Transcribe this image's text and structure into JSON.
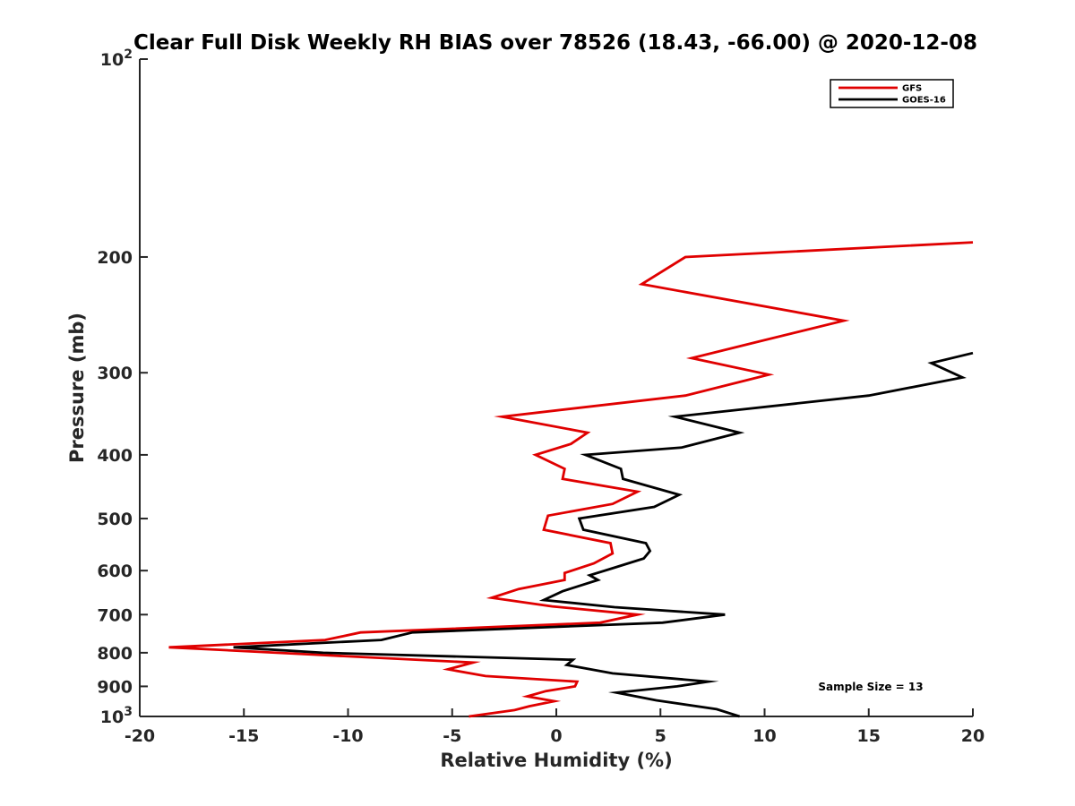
{
  "chart_data": {
    "type": "line",
    "title": "Clear Full Disk Weekly RH BIAS over 78526 (18.43, -66.00) @ 2020-12-08",
    "xlabel": "Relative Humidity (%)",
    "ylabel": "Pressure (mb)",
    "xlim": [
      -20,
      20
    ],
    "ylim": [
      100,
      1000
    ],
    "y_scale": "log",
    "y_reversed": true,
    "grid": false,
    "legend_position": "top-right",
    "x_ticks": [
      -20,
      -15,
      -10,
      -5,
      0,
      5,
      10,
      15,
      20
    ],
    "y_ticks": [
      {
        "value": 100,
        "label": "10",
        "sup": "2"
      },
      {
        "value": 200,
        "label": "200",
        "sup": ""
      },
      {
        "value": 300,
        "label": "300",
        "sup": ""
      },
      {
        "value": 400,
        "label": "400",
        "sup": ""
      },
      {
        "value": 500,
        "label": "500",
        "sup": ""
      },
      {
        "value": 600,
        "label": "600",
        "sup": ""
      },
      {
        "value": 700,
        "label": "700",
        "sup": ""
      },
      {
        "value": 800,
        "label": "800",
        "sup": ""
      },
      {
        "value": 900,
        "label": "900",
        "sup": ""
      },
      {
        "value": 1000,
        "label": "10",
        "sup": "3"
      }
    ],
    "series": [
      {
        "name": "GFS",
        "color": "#e00000",
        "points": [
          [
            20.0,
            190
          ],
          [
            6.2,
            200
          ],
          [
            4.1,
            220
          ],
          [
            13.8,
            250
          ],
          [
            9.5,
            270
          ],
          [
            6.5,
            285
          ],
          [
            10.2,
            302
          ],
          [
            6.2,
            325
          ],
          [
            -2.6,
            350
          ],
          [
            1.5,
            370
          ],
          [
            0.7,
            385
          ],
          [
            -1.0,
            400
          ],
          [
            0.4,
            420
          ],
          [
            0.3,
            435
          ],
          [
            3.9,
            455
          ],
          [
            2.7,
            475
          ],
          [
            -0.4,
            495
          ],
          [
            -0.6,
            520
          ],
          [
            2.6,
            545
          ],
          [
            2.7,
            565
          ],
          [
            1.8,
            585
          ],
          [
            0.4,
            605
          ],
          [
            0.4,
            620
          ],
          [
            -1.8,
            640
          ],
          [
            -3.1,
            660
          ],
          [
            -0.2,
            680
          ],
          [
            3.9,
            700
          ],
          [
            2.1,
            720
          ],
          [
            -9.4,
            745
          ],
          [
            -11.1,
            765
          ],
          [
            -18.6,
            785
          ],
          [
            -11.7,
            805
          ],
          [
            -4.0,
            828
          ],
          [
            -5.2,
            848
          ],
          [
            -3.4,
            868
          ],
          [
            1.0,
            885
          ],
          [
            0.9,
            900
          ],
          [
            -0.5,
            915
          ],
          [
            -1.4,
            932
          ],
          [
            -0.1,
            948
          ],
          [
            -1.3,
            965
          ],
          [
            -2.0,
            978
          ],
          [
            -4.2,
            1000
          ]
        ]
      },
      {
        "name": "GOES-16",
        "color": "#000000",
        "points": [
          [
            20.0,
            280
          ],
          [
            18.0,
            290
          ],
          [
            19.5,
            305
          ],
          [
            15.0,
            325
          ],
          [
            5.7,
            350
          ],
          [
            8.8,
            370
          ],
          [
            6.0,
            390
          ],
          [
            1.4,
            400
          ],
          [
            3.1,
            420
          ],
          [
            3.2,
            435
          ],
          [
            5.9,
            460
          ],
          [
            4.7,
            480
          ],
          [
            1.1,
            500
          ],
          [
            1.3,
            520
          ],
          [
            4.3,
            545
          ],
          [
            4.5,
            560
          ],
          [
            4.2,
            575
          ],
          [
            2.7,
            595
          ],
          [
            1.6,
            610
          ],
          [
            2.0,
            620
          ],
          [
            0.3,
            645
          ],
          [
            -0.6,
            665
          ],
          [
            2.8,
            682
          ],
          [
            8.1,
            700
          ],
          [
            5.1,
            720
          ],
          [
            -6.9,
            745
          ],
          [
            -8.4,
            765
          ],
          [
            -15.5,
            785
          ],
          [
            -11.2,
            800
          ],
          [
            0.8,
            820
          ],
          [
            0.5,
            835
          ],
          [
            2.7,
            860
          ],
          [
            7.3,
            885
          ],
          [
            5.8,
            900
          ],
          [
            2.9,
            920
          ],
          [
            4.8,
            945
          ],
          [
            7.7,
            975
          ],
          [
            8.8,
            1000
          ]
        ]
      }
    ],
    "annotation": "Sample Size = 13"
  }
}
